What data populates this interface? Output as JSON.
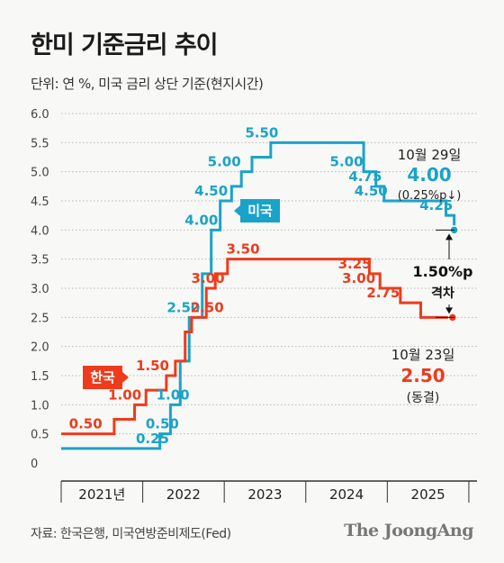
{
  "title": "한미 기준금리 추이",
  "unit_note": "단위: 연 %, 미국 금리 상단 기준(현지시간)",
  "source": "자료: 한국은행, 미국연방준비제도(Fed)",
  "logo": "The JoongAng",
  "colors": {
    "us": "#1aa3c8",
    "korea": "#ee3b1c",
    "axis": "#333333",
    "grid": "#b5b5b5"
  },
  "chart_data": {
    "type": "line",
    "step": true,
    "ylim": [
      0,
      6
    ],
    "yticks": [
      "0",
      "0.5",
      "1.0",
      "1.5",
      "2.0",
      "2.5",
      "3.0",
      "3.5",
      "4.0",
      "4.5",
      "5.0",
      "5.5",
      "6.0"
    ],
    "xlim": [
      2021,
      2026.1
    ],
    "x_categories": [
      "2021년",
      "2022",
      "2023",
      "2024",
      "2025"
    ],
    "grid": "horizontal",
    "series": [
      {
        "name": "미국",
        "color": "#1aa3c8",
        "points": [
          [
            2021.0,
            0.25
          ],
          [
            2022.21,
            0.5
          ],
          [
            2022.34,
            1.0
          ],
          [
            2022.46,
            1.75
          ],
          [
            2022.57,
            2.5
          ],
          [
            2022.73,
            3.25
          ],
          [
            2022.84,
            4.0
          ],
          [
            2022.95,
            4.5
          ],
          [
            2023.09,
            4.75
          ],
          [
            2023.21,
            5.0
          ],
          [
            2023.34,
            5.25
          ],
          [
            2023.57,
            5.5
          ],
          [
            2024.71,
            5.0
          ],
          [
            2024.86,
            4.75
          ],
          [
            2024.96,
            4.5
          ],
          [
            2025.72,
            4.25
          ],
          [
            2025.82,
            4.0
          ]
        ],
        "labels": [
          "0.25",
          "0.50",
          "1.00",
          "2.50",
          "4.00",
          "4.50",
          "5.00",
          "5.50",
          "5.00",
          "4.75",
          "4.50",
          "4.25"
        ]
      },
      {
        "name": "한국",
        "color": "#ee3b1c",
        "points": [
          [
            2021.0,
            0.5
          ],
          [
            2021.65,
            0.75
          ],
          [
            2021.9,
            1.0
          ],
          [
            2022.04,
            1.25
          ],
          [
            2022.29,
            1.5
          ],
          [
            2022.4,
            1.75
          ],
          [
            2022.52,
            2.25
          ],
          [
            2022.6,
            2.5
          ],
          [
            2022.78,
            3.0
          ],
          [
            2022.89,
            3.25
          ],
          [
            2023.04,
            3.5
          ],
          [
            2024.78,
            3.25
          ],
          [
            2024.91,
            3.0
          ],
          [
            2025.16,
            2.75
          ],
          [
            2025.41,
            2.5
          ],
          [
            2025.8,
            2.5
          ]
        ],
        "labels": [
          "0.50",
          "1.00",
          "1.50",
          "2.50",
          "3.00",
          "3.50",
          "3.25",
          "3.00",
          "2.75"
        ]
      }
    ],
    "annotations": {
      "us_date": "10월 29일",
      "us_value": "4.00",
      "us_change": "(0.25%p↓)",
      "gap_value": "1.50%p",
      "gap_label": "격차",
      "kr_date": "10월 23일",
      "kr_value": "2.50",
      "kr_status": "(동결)"
    }
  }
}
